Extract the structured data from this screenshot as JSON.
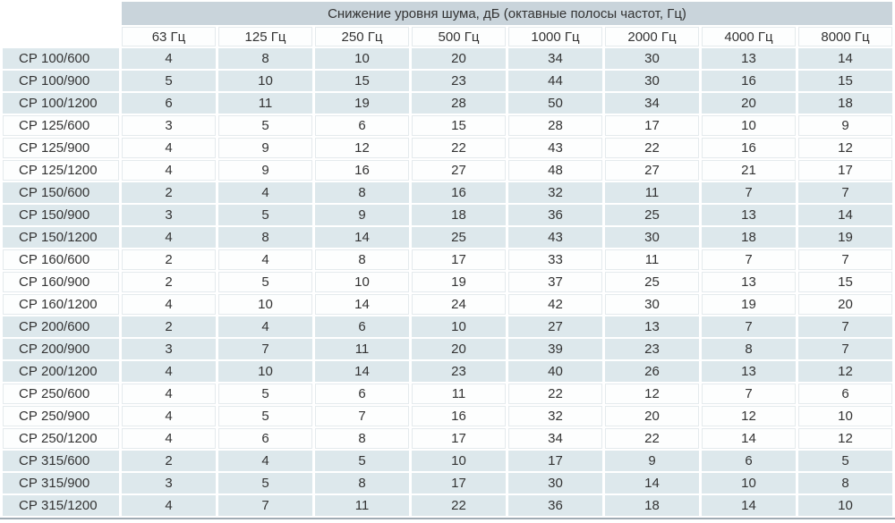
{
  "colors": {
    "header_band": "#c9d4db",
    "shaded_row": "#dde8ec",
    "plain_row": "#fdfefe",
    "grid_line": "#e4eaed",
    "bottom_rule": "#a0abb4",
    "text": "#333333"
  },
  "chart_data": {
    "type": "table",
    "title": "Снижение уровня шума, дБ (октавные полосы частот, Гц)",
    "frequencies": [
      "63 Гц",
      "125 Гц",
      "250 Гц",
      "500 Гц",
      "1000 Гц",
      "2000 Гц",
      "4000 Гц",
      "8000 Гц"
    ],
    "rows": [
      {
        "model": "СР 100/600",
        "values": [
          4,
          8,
          10,
          20,
          34,
          30,
          13,
          14
        ]
      },
      {
        "model": "СР 100/900",
        "values": [
          5,
          10,
          15,
          23,
          44,
          30,
          16,
          15
        ]
      },
      {
        "model": "СР 100/1200",
        "values": [
          6,
          11,
          19,
          28,
          50,
          34,
          20,
          18
        ]
      },
      {
        "model": "СР 125/600",
        "values": [
          3,
          5,
          6,
          15,
          28,
          17,
          10,
          9
        ]
      },
      {
        "model": "СР 125/900",
        "values": [
          4,
          9,
          12,
          22,
          43,
          22,
          16,
          12
        ]
      },
      {
        "model": "СР 125/1200",
        "values": [
          4,
          9,
          16,
          27,
          48,
          27,
          21,
          17
        ]
      },
      {
        "model": "СР 150/600",
        "values": [
          2,
          4,
          8,
          16,
          32,
          11,
          7,
          7
        ]
      },
      {
        "model": "СР 150/900",
        "values": [
          3,
          5,
          9,
          18,
          36,
          25,
          13,
          14
        ]
      },
      {
        "model": "СР 150/1200",
        "values": [
          4,
          8,
          14,
          25,
          43,
          30,
          18,
          19
        ]
      },
      {
        "model": "СР 160/600",
        "values": [
          2,
          4,
          8,
          17,
          33,
          11,
          7,
          7
        ]
      },
      {
        "model": "СР 160/900",
        "values": [
          2,
          5,
          10,
          19,
          37,
          25,
          13,
          15
        ]
      },
      {
        "model": "СР 160/1200",
        "values": [
          4,
          10,
          14,
          24,
          42,
          30,
          19,
          20
        ]
      },
      {
        "model": "СР 200/600",
        "values": [
          2,
          4,
          6,
          10,
          27,
          13,
          7,
          7
        ]
      },
      {
        "model": "СР 200/900",
        "values": [
          3,
          7,
          11,
          20,
          39,
          23,
          8,
          7
        ]
      },
      {
        "model": "СР 200/1200",
        "values": [
          4,
          10,
          14,
          23,
          40,
          26,
          13,
          12
        ]
      },
      {
        "model": "СР 250/600",
        "values": [
          4,
          5,
          6,
          11,
          22,
          12,
          7,
          6
        ]
      },
      {
        "model": "СР 250/900",
        "values": [
          4,
          5,
          7,
          16,
          32,
          20,
          12,
          10
        ]
      },
      {
        "model": "СР 250/1200",
        "values": [
          4,
          6,
          8,
          17,
          34,
          22,
          14,
          12
        ]
      },
      {
        "model": "СР 315/600",
        "values": [
          2,
          4,
          5,
          10,
          17,
          9,
          6,
          5
        ]
      },
      {
        "model": "СР 315/900",
        "values": [
          3,
          5,
          8,
          17,
          30,
          14,
          10,
          8
        ]
      },
      {
        "model": "СР 315/1200",
        "values": [
          4,
          7,
          11,
          22,
          36,
          18,
          14,
          10
        ]
      }
    ]
  }
}
